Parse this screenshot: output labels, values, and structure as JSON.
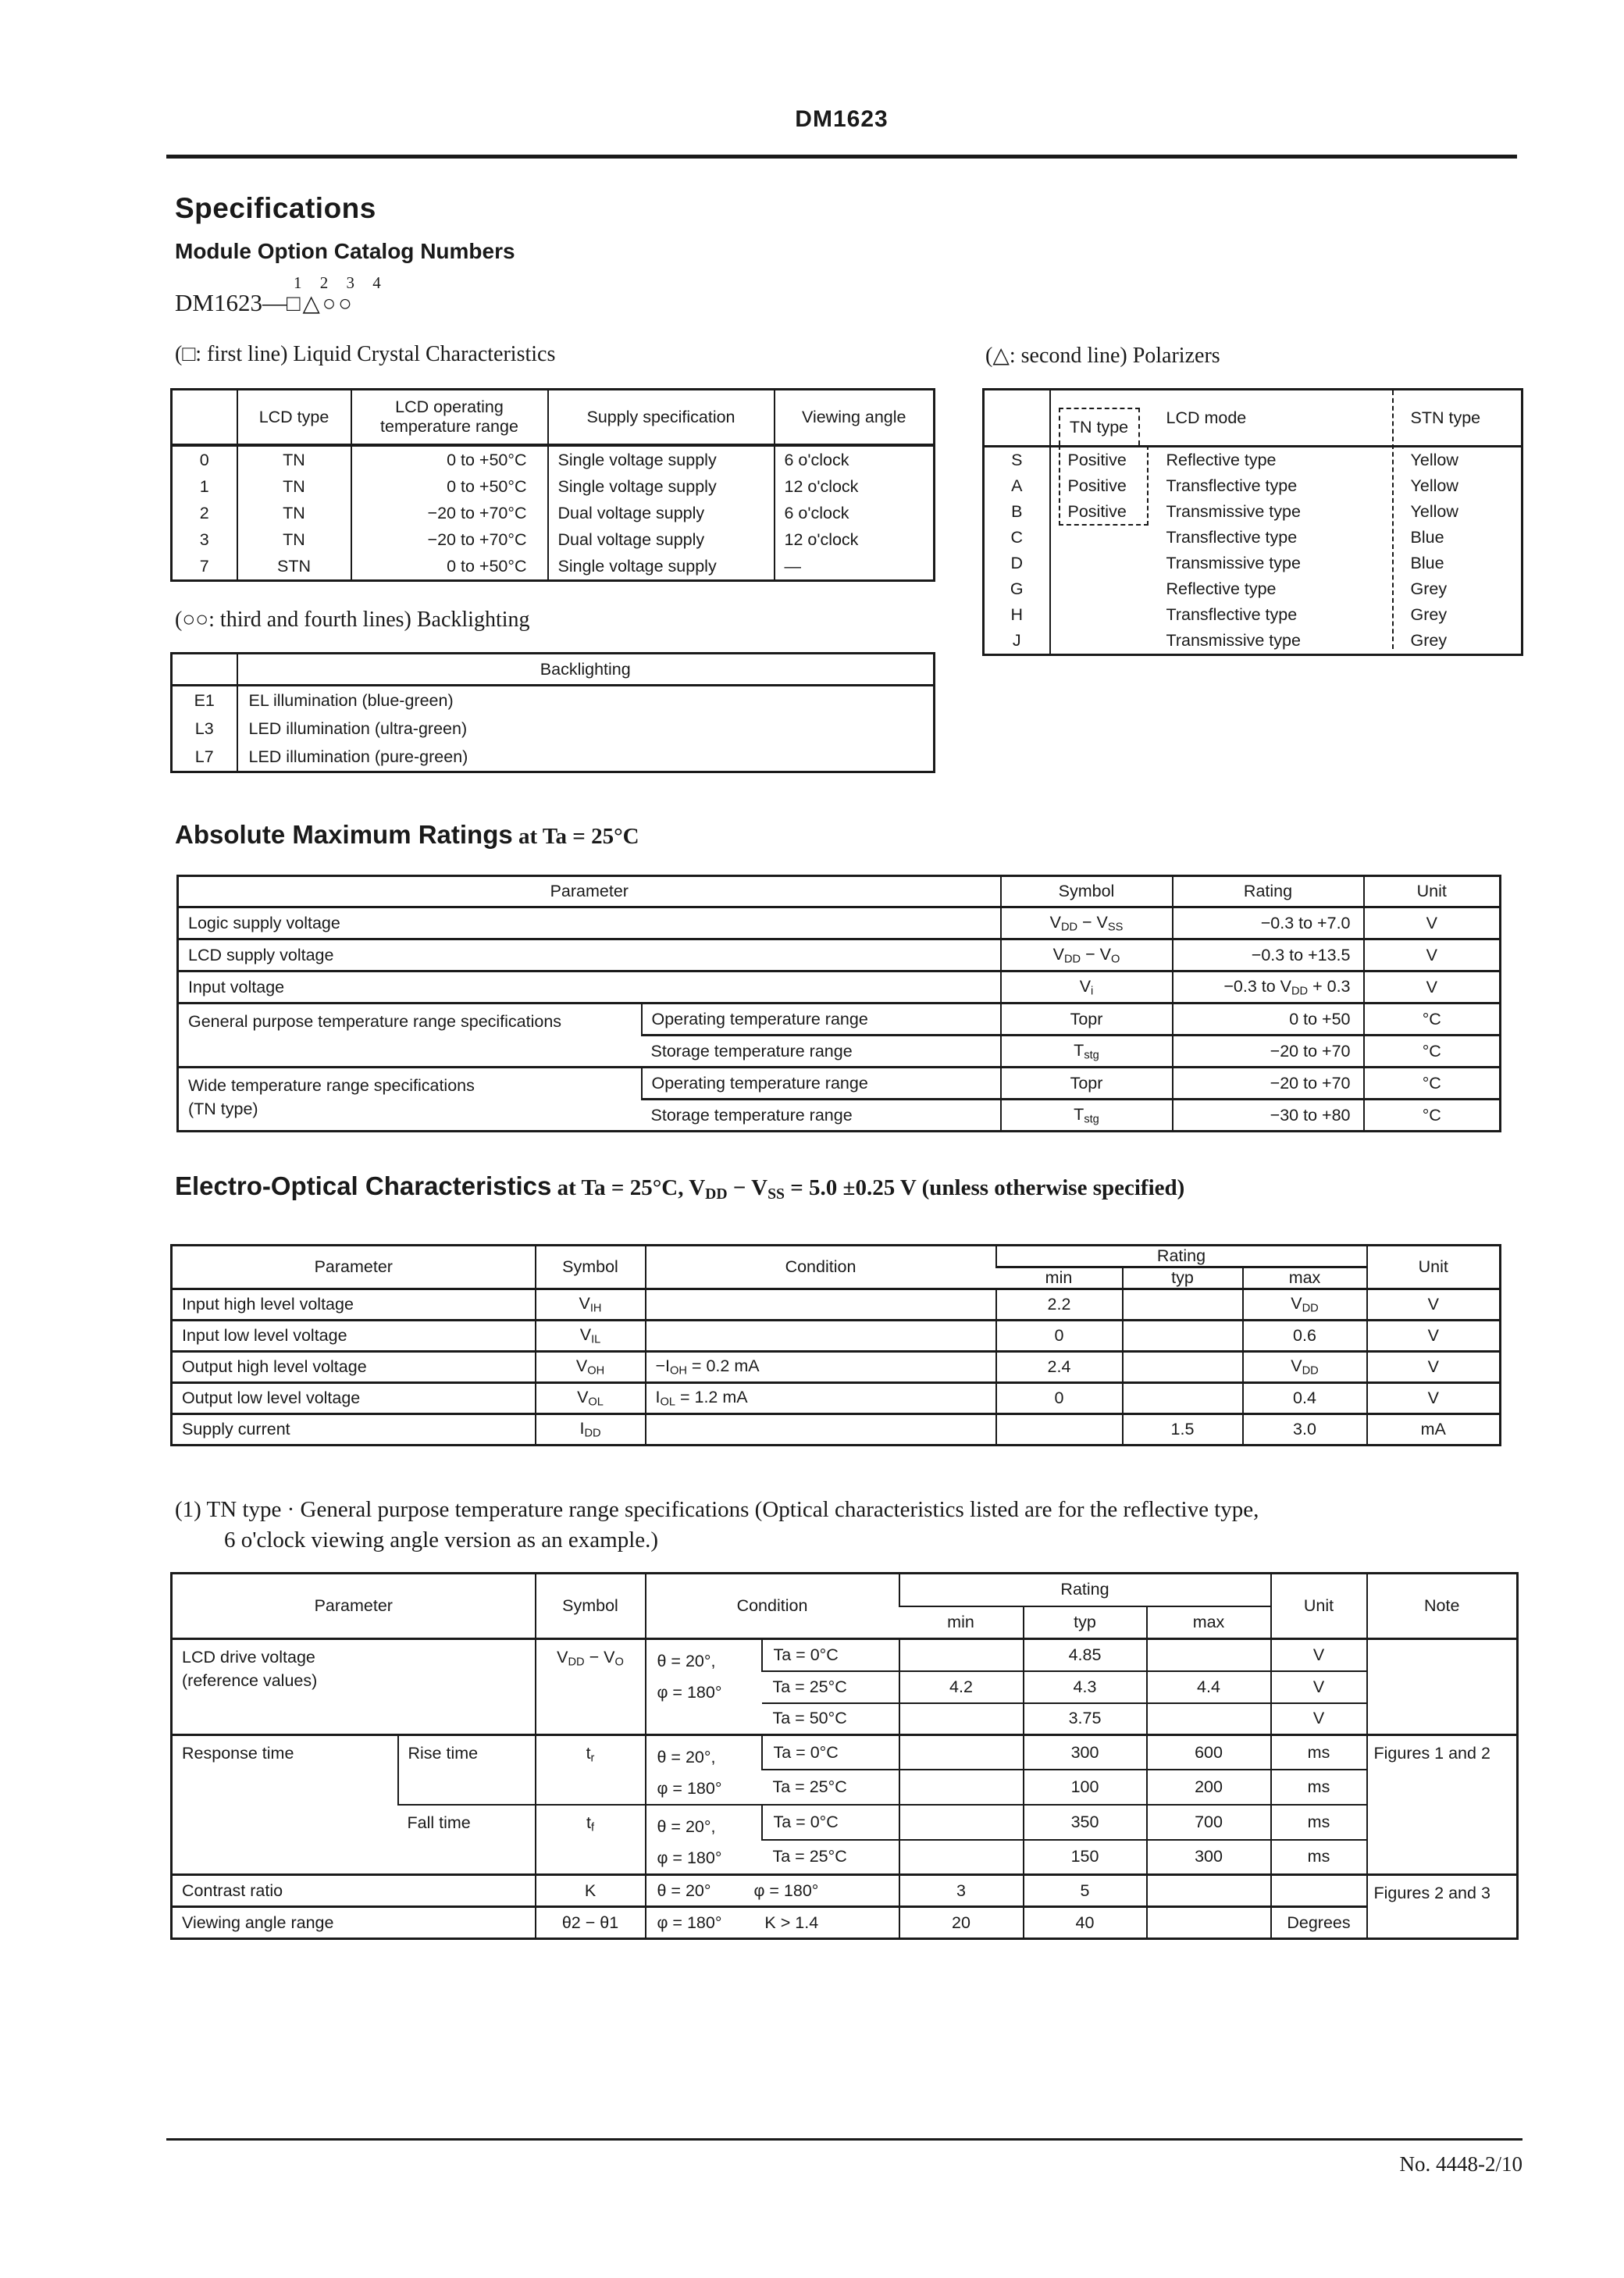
{
  "page": {
    "doc_id": "DM1623",
    "footer_no": "No. 4448-2/10"
  },
  "headings": {
    "specifications": "Specifications",
    "module_option": "Module Option Catalog Numbers",
    "catalog_prefix": "DM1623—",
    "catalog_digits": "1 2 3 4",
    "catalog_symbols": "□△○○",
    "caption_lcd": "(□: first line) Liquid Crystal Characteristics",
    "caption_polarizers": "(△: second line) Polarizers",
    "caption_backlighting": "(○○: third and fourth lines) Backlighting",
    "amr_bold": "Absolute Maximum Ratings",
    "amr_rest": " at Ta = 25°C",
    "eo_bold": "Electro-Optical Characteristics",
    "eo_rest": [
      {
        "t": " at Ta = 25°C, V",
        "s": "DD"
      },
      {
        "t": " − V",
        "s": "SS"
      },
      {
        "t": " = 5.0 ±0.25 V (unless otherwise specified)"
      }
    ],
    "note1_line1": "(1) TN type · General purpose temperature range specifications (Optical characteristics listed are for the reflective type,",
    "note1_line2": "6 o'clock viewing angle version as an example.)"
  },
  "lcd_table": {
    "headers": [
      "",
      "LCD type",
      "LCD operating temperature range",
      "Supply specification",
      "Viewing angle"
    ],
    "rows": [
      [
        "0",
        "TN",
        "0 to +50°C",
        "Single voltage supply",
        "6 o'clock"
      ],
      [
        "1",
        "TN",
        "0 to +50°C",
        "Single voltage supply",
        "12 o'clock"
      ],
      [
        "2",
        "TN",
        "−20 to +70°C",
        "Dual voltage supply",
        "6 o'clock"
      ],
      [
        "3",
        "TN",
        "−20 to +70°C",
        "Dual voltage supply",
        "12 o'clock"
      ],
      [
        "7",
        "STN",
        "0 to +50°C",
        "Single voltage supply",
        "—"
      ]
    ]
  },
  "polarizers": {
    "headers": {
      "tn": "TN type",
      "mode": "LCD mode",
      "stn": "STN type"
    },
    "rows": [
      {
        "code": "S",
        "tn": "Positive",
        "mode": "Reflective type",
        "stn": "Yellow"
      },
      {
        "code": "A",
        "tn": "Positive",
        "mode": "Transflective type",
        "stn": "Yellow"
      },
      {
        "code": "B",
        "tn": "Positive",
        "mode": "Transmissive type",
        "stn": "Yellow"
      },
      {
        "code": "C",
        "tn": "",
        "mode": "Transflective type",
        "stn": "Blue"
      },
      {
        "code": "D",
        "tn": "",
        "mode": "Transmissive type",
        "stn": "Blue"
      },
      {
        "code": "G",
        "tn": "",
        "mode": "Reflective type",
        "stn": "Grey"
      },
      {
        "code": "H",
        "tn": "",
        "mode": "Transflective type",
        "stn": "Grey"
      },
      {
        "code": "J",
        "tn": "",
        "mode": "Transmissive type",
        "stn": "Grey"
      }
    ]
  },
  "backlighting": {
    "header": "Backlighting",
    "rows": [
      {
        "code": "E1",
        "desc": "EL illumination (blue-green)"
      },
      {
        "code": "L3",
        "desc": "LED illumination (ultra-green)"
      },
      {
        "code": "L7",
        "desc": "LED illumination (pure-green)"
      }
    ]
  },
  "amr": {
    "headers": {
      "parameter": "Parameter",
      "symbol": "Symbol",
      "rating": "Rating",
      "unit": "Unit"
    },
    "rows": [
      {
        "param": "Logic supply voltage",
        "symbol": [
          {
            "t": "V",
            "s": "DD"
          },
          {
            "t": " − V",
            "s": "SS"
          }
        ],
        "rating": [
          {
            "t": "−0.3 to +7.0"
          }
        ],
        "unit": "V"
      },
      {
        "param": "LCD supply voltage",
        "symbol": [
          {
            "t": "V",
            "s": "DD"
          },
          {
            "t": " − V",
            "s": "O"
          }
        ],
        "rating": [
          {
            "t": "−0.3 to +13.5"
          }
        ],
        "unit": "V"
      },
      {
        "param": "Input voltage",
        "symbol": [
          {
            "t": "V",
            "s": "i"
          }
        ],
        "rating": [
          {
            "t": "−0.3 to V",
            "s": "DD"
          },
          {
            "t": " + 0.3"
          }
        ],
        "unit": "V"
      },
      {
        "param": "General purpose temperature range specifications",
        "sub": "Operating temperature range",
        "symbol": [
          {
            "t": "Topr"
          }
        ],
        "rating": [
          {
            "t": "0 to +50"
          }
        ],
        "unit": "°C"
      },
      {
        "sub": "Storage temperature range",
        "symbol": [
          {
            "t": "T",
            "s": "stg"
          }
        ],
        "rating": [
          {
            "t": "−20 to +70"
          }
        ],
        "unit": "°C"
      },
      {
        "param": "Wide temperature range specifications",
        "param_line2": "(TN type)",
        "sub": "Operating temperature range",
        "symbol": [
          {
            "t": "Topr"
          }
        ],
        "rating": [
          {
            "t": "−20 to +70"
          }
        ],
        "unit": "°C"
      },
      {
        "sub": "Storage temperature range",
        "symbol": [
          {
            "t": "T",
            "s": "stg"
          }
        ],
        "rating": [
          {
            "t": "−30 to +80"
          }
        ],
        "unit": "°C"
      }
    ]
  },
  "eo": {
    "headers": {
      "parameter": "Parameter",
      "symbol": "Symbol",
      "condition": "Condition",
      "rating": "Rating",
      "min": "min",
      "typ": "typ",
      "max": "max",
      "unit": "Unit"
    },
    "rows": [
      {
        "param": "Input high level voltage",
        "symbol": [
          {
            "t": "V",
            "s": "IH"
          }
        ],
        "cond": [],
        "min": [
          {
            "t": "2.2"
          }
        ],
        "typ": [],
        "max": [
          {
            "t": "V",
            "s": "DD"
          }
        ],
        "unit": "V"
      },
      {
        "param": "Input low level voltage",
        "symbol": [
          {
            "t": "V",
            "s": "IL"
          }
        ],
        "cond": [],
        "min": [
          {
            "t": "0"
          }
        ],
        "typ": [],
        "max": [
          {
            "t": "0.6"
          }
        ],
        "unit": "V"
      },
      {
        "param": "Output high level voltage",
        "symbol": [
          {
            "t": "V",
            "s": "OH"
          }
        ],
        "cond": [
          {
            "t": "−I",
            "s": "OH"
          },
          {
            "t": " = 0.2 mA"
          }
        ],
        "min": [
          {
            "t": "2.4"
          }
        ],
        "typ": [],
        "max": [
          {
            "t": "V",
            "s": "DD"
          }
        ],
        "unit": "V"
      },
      {
        "param": "Output low level voltage",
        "symbol": [
          {
            "t": "V",
            "s": "OL"
          }
        ],
        "cond": [
          {
            "t": "I",
            "s": "OL"
          },
          {
            "t": " = 1.2 mA"
          }
        ],
        "min": [
          {
            "t": "0"
          }
        ],
        "typ": [],
        "max": [
          {
            "t": "0.4"
          }
        ],
        "unit": "V"
      },
      {
        "param": "Supply current",
        "symbol": [
          {
            "t": "I",
            "s": "DD"
          }
        ],
        "cond": [],
        "min": [],
        "typ": [
          {
            "t": "1.5"
          }
        ],
        "max": [
          {
            "t": "3.0"
          }
        ],
        "unit": "mA"
      }
    ]
  },
  "tn": {
    "headers": {
      "parameter": "Parameter",
      "symbol": "Symbol",
      "condition": "Condition",
      "rating": "Rating",
      "min": "min",
      "typ": "typ",
      "max": "max",
      "unit": "Unit",
      "note": "Note"
    },
    "drive": {
      "param_line1": "LCD drive voltage",
      "param_line2": "(reference values)",
      "symbol": [
        {
          "t": "V",
          "s": "DD"
        },
        {
          "t": " − V",
          "s": "O"
        }
      ],
      "cond_line1": "θ = 20°,",
      "cond_line2": "φ = 180°",
      "subrows": [
        {
          "ta": "Ta = 0°C",
          "min": "",
          "typ": "4.85",
          "max": "",
          "unit": "V"
        },
        {
          "ta": "Ta = 25°C",
          "min": "4.2",
          "typ": "4.3",
          "max": "4.4",
          "unit": "V"
        },
        {
          "ta": "Ta = 50°C",
          "min": "",
          "typ": "3.75",
          "max": "",
          "unit": "V"
        }
      ]
    },
    "response": {
      "param": "Response time",
      "note": "Figures 1 and 2",
      "rise": {
        "label": "Rise time",
        "symbol": [
          {
            "t": "t",
            "s": "r"
          }
        ],
        "cond_line1": "θ = 20°,",
        "cond_line2": "φ = 180°",
        "subrows": [
          {
            "ta": "Ta = 0°C",
            "min": "",
            "typ": "300",
            "max": "600",
            "unit": "ms"
          },
          {
            "ta": "Ta = 25°C",
            "min": "",
            "typ": "100",
            "max": "200",
            "unit": "ms"
          }
        ]
      },
      "fall": {
        "label": "Fall time",
        "symbol": [
          {
            "t": "t",
            "s": "f"
          }
        ],
        "cond_line1": "θ = 20°,",
        "cond_line2": "φ = 180°",
        "subrows": [
          {
            "ta": "Ta = 0°C",
            "min": "",
            "typ": "350",
            "max": "700",
            "unit": "ms"
          },
          {
            "ta": "Ta = 25°C",
            "min": "",
            "typ": "150",
            "max": "300",
            "unit": "ms"
          }
        ]
      }
    },
    "contrast": {
      "param": "Contrast ratio",
      "symbol": [
        {
          "t": "K"
        }
      ],
      "cond_a": "θ = 20°",
      "cond_b": "φ = 180°",
      "min": "3",
      "typ": "5",
      "max": "",
      "unit": "",
      "note": "Figures 2 and 3"
    },
    "viewing": {
      "param": "Viewing angle range",
      "symbol": [
        {
          "t": "θ2 − θ1"
        }
      ],
      "cond_a": "φ = 180°",
      "cond_b": "K > 1.4",
      "min": "20",
      "typ": "40",
      "max": "",
      "unit": "Degrees",
      "note": ""
    }
  }
}
